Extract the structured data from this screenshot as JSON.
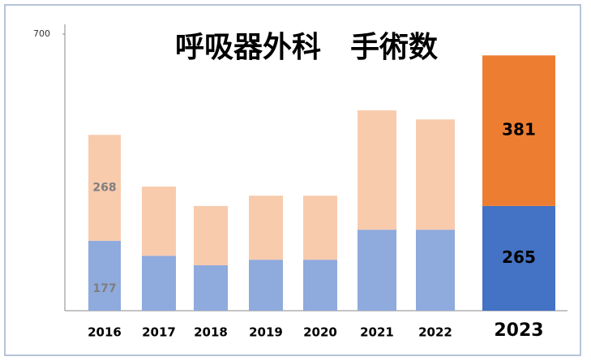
{
  "chart_data": {
    "type": "stacked_bar",
    "title": "呼吸器外科　手術数",
    "categories": [
      "2016",
      "2017",
      "2018",
      "2019",
      "2020",
      "2021",
      "2022",
      "2023"
    ],
    "series": [
      {
        "color": "#8faadc",
        "highlight_color": "#4472c4",
        "values": [
          177,
          139,
          115,
          129,
          129,
          205,
          205,
          265
        ],
        "value_labels": [
          "177",
          null,
          null,
          null,
          null,
          null,
          null,
          "265"
        ]
      },
      {
        "color": "#f8cbad",
        "highlight_color": "#ed7d31",
        "values": [
          268,
          175,
          150,
          162,
          162,
          302,
          279,
          381
        ],
        "value_labels": [
          "268",
          null,
          null,
          null,
          null,
          null,
          null,
          "381"
        ]
      }
    ],
    "highlight_category": "2023",
    "ylim": [
      0,
      700
    ],
    "yticks": [
      700
    ]
  }
}
